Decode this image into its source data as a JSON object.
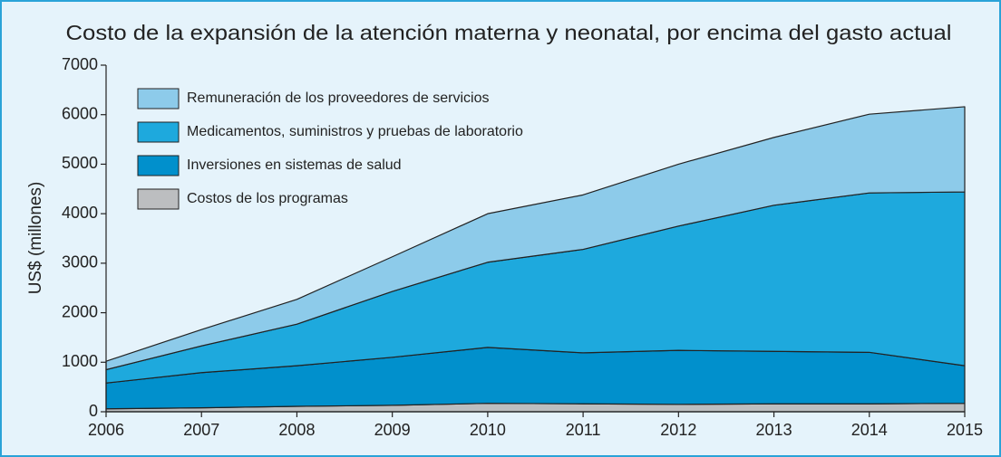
{
  "chart_data": {
    "type": "stacked_area",
    "title": "Costo de la expansión de la atención materna y neonatal, por encima del gasto actual",
    "ylabel": "US$ (millones)",
    "x": [
      2006,
      2007,
      2008,
      2009,
      2010,
      2011,
      2012,
      2013,
      2014,
      2015
    ],
    "xlim": [
      2006,
      2015
    ],
    "xticks": [
      2006,
      2007,
      2008,
      2009,
      2010,
      2011,
      2012,
      2013,
      2014,
      2015
    ],
    "ylim": [
      0,
      7000
    ],
    "yticks": [
      0,
      1000,
      2000,
      3000,
      4000,
      5000,
      6000,
      7000
    ],
    "legend": "upper left",
    "series": [
      {
        "name": "Remuneración de los proveedores de servicios",
        "color": "#8dcbea",
        "values": [
          170,
          330,
          500,
          700,
          980,
          1100,
          1250,
          1370,
          1590,
          1720
        ]
      },
      {
        "name": "Medicamentos, suministros y pruebas de laboratorio",
        "color": "#1ea9dd",
        "values": [
          270,
          540,
          840,
          1330,
          1720,
          2090,
          2510,
          2950,
          3220,
          3510
        ]
      },
      {
        "name": "Inversiones en sistemas de salud",
        "color": "#0190cc",
        "values": [
          520,
          710,
          820,
          970,
          1130,
          1030,
          1090,
          1060,
          1040,
          760
        ]
      },
      {
        "name": "Costos de los programas",
        "color": "#bcbec0",
        "values": [
          60,
          80,
          110,
          130,
          170,
          160,
          150,
          160,
          160,
          170
        ]
      }
    ]
  }
}
